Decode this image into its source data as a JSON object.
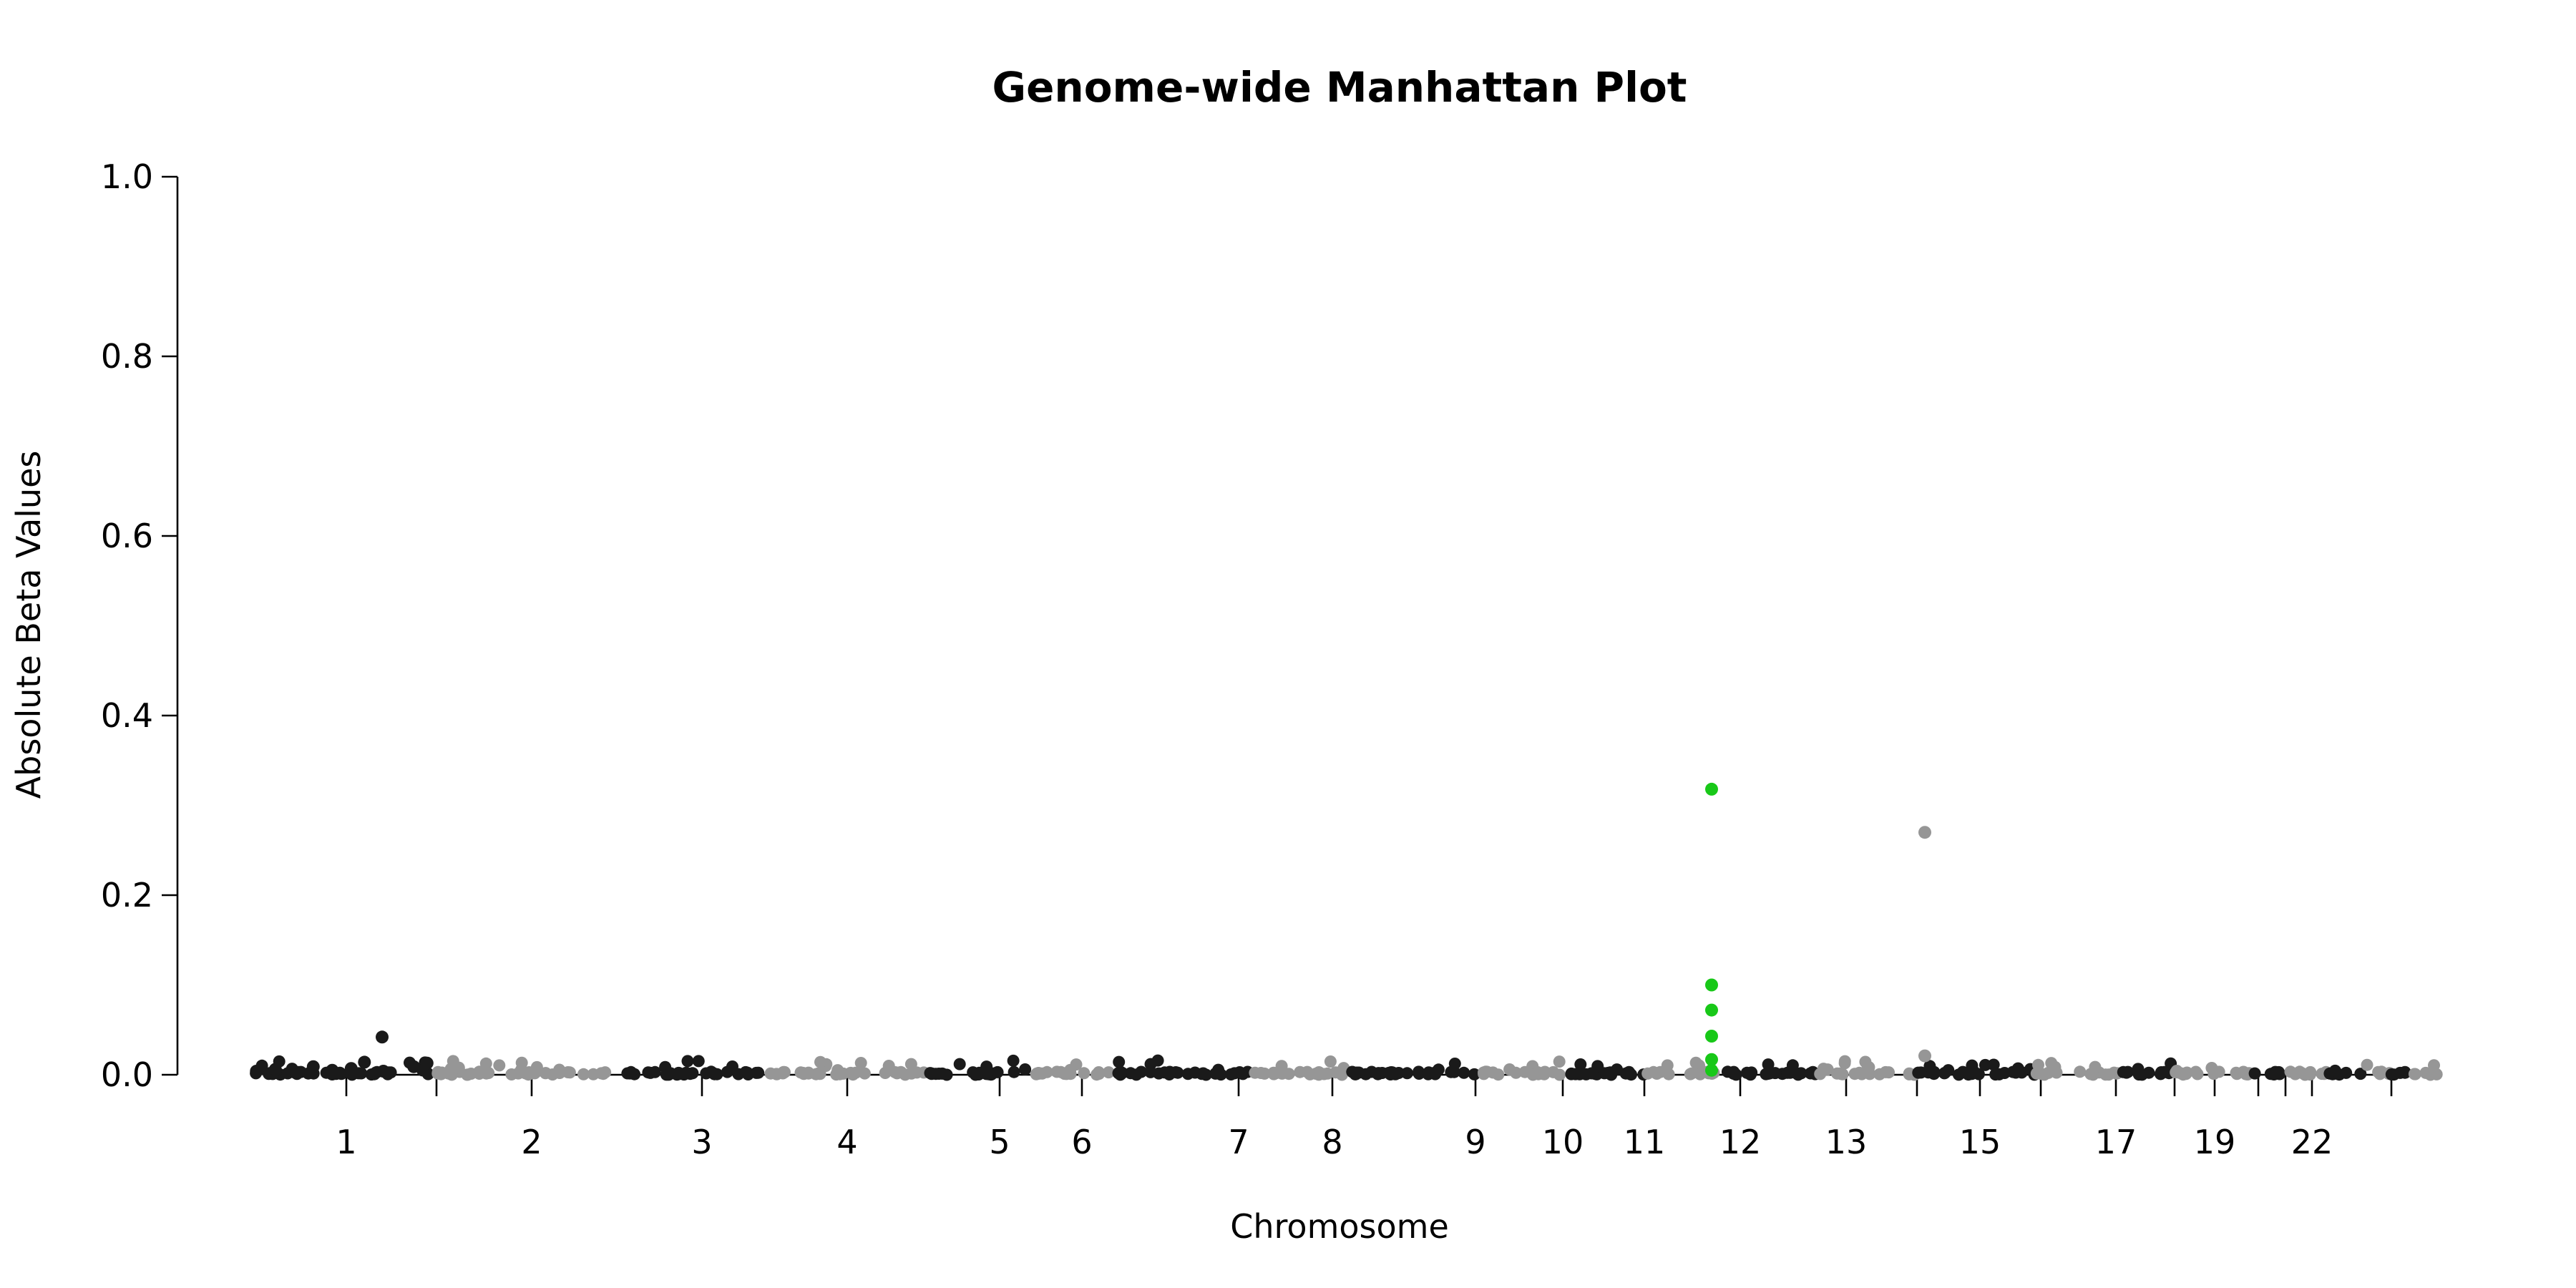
{
  "chart_data": {
    "type": "scatter",
    "title": "Genome-wide Manhattan Plot",
    "xlabel": "Chromosome",
    "ylabel": "Absolute Beta Values",
    "ylim": [
      0,
      1.0
    ],
    "yticks": [
      0.0,
      0.2,
      0.4,
      0.6,
      0.8,
      1.0
    ],
    "ytick_labels": [
      "0.0",
      "0.2",
      "0.4",
      "0.6",
      "0.8",
      "1.0"
    ],
    "grid": false,
    "legend": "none",
    "chromosome_labels": [
      "1",
      "2",
      "3",
      "4",
      "5",
      "6",
      "7",
      "8",
      "9",
      "10",
      "11",
      "12",
      "13",
      "15",
      "17",
      "19",
      "22"
    ],
    "chromosome_tick_labels_shown": [
      "1",
      "",
      "2",
      "3",
      "4",
      "5",
      "6",
      "7",
      "8",
      "9",
      "10",
      "11",
      "12",
      "13",
      "",
      "15",
      "",
      "17",
      "",
      "19",
      "",
      "",
      "22",
      ""
    ],
    "colors": {
      "odd_chromosome": "#1a1a1a",
      "even_chromosome": "#969696",
      "highlight": "#18c818"
    },
    "series": [
      {
        "name": "",
        "color": "odd",
        "points": [
          {
            "chromosome": 1,
            "position": 0.05,
            "value": 0.004
          },
          {
            "chromosome": 1,
            "position": 0.15,
            "value": 0.006
          },
          {
            "chromosome": 1,
            "position": 0.25,
            "value": 0.003
          },
          {
            "chromosome": 1,
            "position": 0.35,
            "value": 0.009
          },
          {
            "chromosome": 1,
            "position": 0.45,
            "value": 0.005
          },
          {
            "chromosome": 1,
            "position": 0.55,
            "value": 0.007
          },
          {
            "chromosome": 1,
            "position": 0.62,
            "value": 0.014
          },
          {
            "chromosome": 1,
            "position": 0.72,
            "value": 0.004
          },
          {
            "chromosome": 1,
            "position": 0.82,
            "value": 0.042
          },
          {
            "chromosome": 1,
            "position": 0.88,
            "value": 0.009
          },
          {
            "chromosome": 1,
            "position": 0.95,
            "value": 0.013
          }
        ]
      },
      {
        "name": "",
        "color": "highlight",
        "points": [
          {
            "chromosome": 12,
            "position": 0.12,
            "value": 0.318
          },
          {
            "chromosome": 12,
            "position": 0.12,
            "value": 0.1
          },
          {
            "chromosome": 12,
            "position": 0.12,
            "value": 0.072
          },
          {
            "chromosome": 12,
            "position": 0.12,
            "value": 0.043
          },
          {
            "chromosome": 12,
            "position": 0.12,
            "value": 0.017
          },
          {
            "chromosome": 12,
            "position": 0.12,
            "value": 0.005
          }
        ]
      },
      {
        "name": "",
        "color": "even",
        "points": [
          {
            "chromosome": 14,
            "position": 0.5,
            "value": 0.27
          },
          {
            "chromosome": 14,
            "position": 0.5,
            "value": 0.021
          }
        ]
      }
    ],
    "background_points_note_free": true
  }
}
